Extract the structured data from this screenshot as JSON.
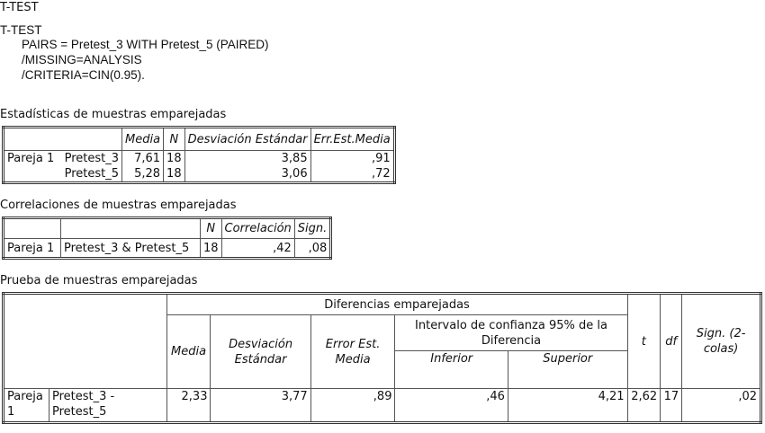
{
  "heading": "T-TEST",
  "syntax": {
    "line1": "T-TEST",
    "line2": "PAIRS = Pretest_3 WITH Pretest_5 (PAIRED)",
    "line3": "/MISSING=ANALYSIS",
    "line4": "/CRITERIA=CIN(0.95)."
  },
  "stats": {
    "title": "Estadísticas de muestras emparejadas",
    "headers": [
      "Media",
      "N",
      "Desviación Estándar",
      "Err.Est.Media"
    ],
    "pair_label": "Pareja 1",
    "rows": [
      {
        "var": "Pretest_3",
        "media": "7,61",
        "n": "18",
        "sd": "3,85",
        "se": ",91"
      },
      {
        "var": "Pretest_5",
        "media": "5,28",
        "n": "18",
        "sd": "3,06",
        "se": ",72"
      }
    ]
  },
  "corr": {
    "title": "Correlaciones de muestras emparejadas",
    "headers": [
      "N",
      "Correlación",
      "Sign."
    ],
    "row": {
      "pair": "Pareja 1",
      "vars": "Pretest_3 & Pretest_5",
      "n": "18",
      "r": ",42",
      "sig": ",08"
    }
  },
  "ptest": {
    "title": "Prueba de muestras emparejadas",
    "group_header": "Diferencias emparejadas",
    "ci_header_1": "Intervalo de confianza 95% de la",
    "ci_header_2": "Diferencia",
    "headers": {
      "media": "Media",
      "sd_1": "Desviación",
      "sd_2": "Estándar",
      "se_1": "Error Est.",
      "se_2": "Media",
      "inf": "Inferior",
      "sup": "Superior",
      "t": "t",
      "df": "df",
      "sig_1": "Sign. (2-",
      "sig_2": "colas)"
    },
    "row": {
      "pair_1": "Pareja",
      "pair_2": "1",
      "vars_1": "Pretest_3 -",
      "vars_2": "Pretest_5",
      "media": "2,33",
      "sd": "3,77",
      "se": ",89",
      "inf": ",46",
      "sup": "4,21",
      "t": "2,62",
      "df": "17",
      "sig": ",02"
    }
  }
}
